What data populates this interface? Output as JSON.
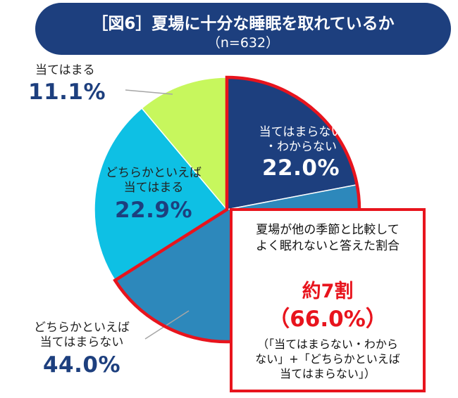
{
  "title": {
    "main": "［図6］夏場に十分な睡眠を取れているか",
    "sub": "（n=632）"
  },
  "chart_data": {
    "type": "pie",
    "title": "［図6］夏場に十分な睡眠を取れているか",
    "subtitle": "（n=632）",
    "slices": [
      {
        "name_lines": [
          "当てはまらない",
          "・わからない"
        ],
        "value": 22.0,
        "value_label": "22.0%",
        "color": "#1d3f7e"
      },
      {
        "name_lines": [
          "どちらかといえば",
          "当てはまらない"
        ],
        "value": 44.0,
        "value_label": "44.0%",
        "color": "#2d88bb"
      },
      {
        "name_lines": [
          "どちらかといえば",
          "当てはまる"
        ],
        "value": 22.9,
        "value_label": "22.9%",
        "color": "#0ec0e4"
      },
      {
        "name_lines": [
          "当てはまる"
        ],
        "value": 11.1,
        "value_label": "11.1%",
        "color": "#c7f75d"
      }
    ],
    "highlight_color": "#e8141d"
  },
  "callout": {
    "desc_lines": [
      "夏場が他の季節と比較して",
      "よく眠れないと答えた割合"
    ],
    "headline": "約7割",
    "value_label": "（66.0%）",
    "note_lines": [
      "（「当てはまらない・わから",
      "ない」+「どちらかといえば",
      "当てはまらない」）"
    ]
  }
}
